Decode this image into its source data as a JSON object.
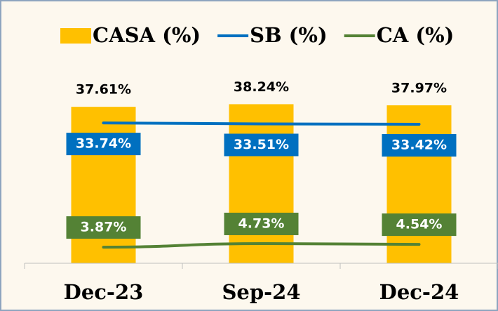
{
  "chart_data": {
    "type": "combo",
    "categories": [
      "Dec-23",
      "Sep-24",
      "Dec-24"
    ],
    "series": [
      {
        "name": "CASA (%)",
        "type": "bar",
        "color": "#ffc000",
        "values": [
          37.61,
          38.24,
          37.97
        ],
        "value_labels": [
          "37.61%",
          "38.24%",
          "37.97%"
        ]
      },
      {
        "name": "SB (%)",
        "type": "line",
        "color": "#0070c0",
        "values": [
          33.74,
          33.51,
          33.42
        ],
        "value_labels": [
          "33.74%",
          "33.51%",
          "33.42%"
        ]
      },
      {
        "name": "CA (%)",
        "type": "line",
        "color": "#548235",
        "values": [
          3.87,
          4.73,
          4.54
        ],
        "value_labels": [
          "3.87%",
          "4.73%",
          "4.54%"
        ]
      }
    ],
    "ylim": [
      0,
      40
    ]
  }
}
